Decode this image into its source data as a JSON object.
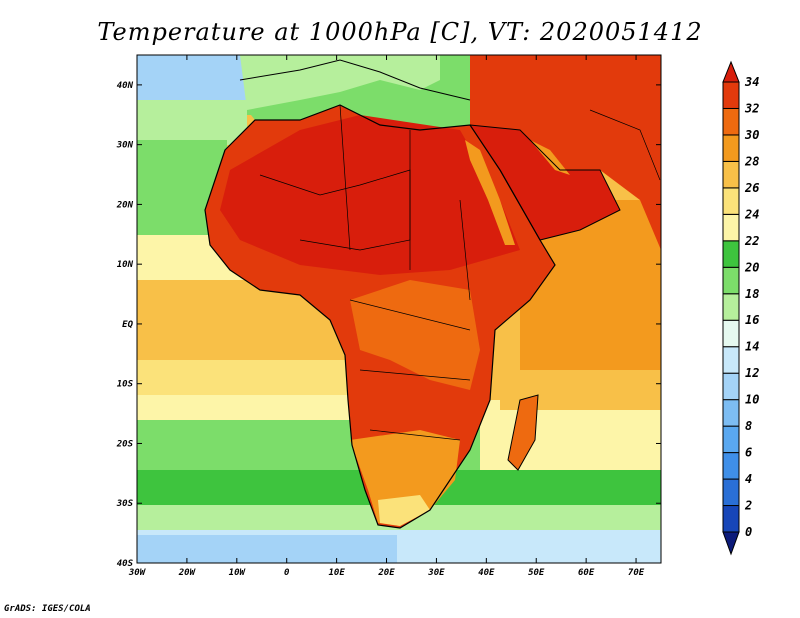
{
  "title": "Temperature at 1000hPa [C], VT: 2020051412",
  "credit": "GrADS: IGES/COLA",
  "map": {
    "lon_range": [
      -30,
      75
    ],
    "lat_range": [
      -40,
      45
    ],
    "x_ticks": [
      "30W",
      "20W",
      "10W",
      "0",
      "10E",
      "20E",
      "30E",
      "40E",
      "50E",
      "60E",
      "70E"
    ],
    "y_ticks": [
      "40S",
      "30S",
      "20S",
      "10S",
      "EQ",
      "10N",
      "20N",
      "30N",
      "40N"
    ]
  },
  "colorbar": {
    "levels": [
      "0",
      "2",
      "4",
      "6",
      "8",
      "10",
      "12",
      "14",
      "16",
      "18",
      "20",
      "22",
      "24",
      "26",
      "28",
      "30",
      "32",
      "34"
    ],
    "colors": [
      "#0c1b7a",
      "#1746b8",
      "#2a6fd6",
      "#3f8fe8",
      "#5aa8f0",
      "#7dbdf3",
      "#a4d3f7",
      "#c8e8fa",
      "#e6f9f0",
      "#b6ef9c",
      "#7cdd6a",
      "#3ec43e",
      "#fdf5a8",
      "#fbe27a",
      "#f8c048",
      "#f39a1e",
      "#ee6a10",
      "#e23a0c",
      "#d81e0c"
    ]
  }
}
